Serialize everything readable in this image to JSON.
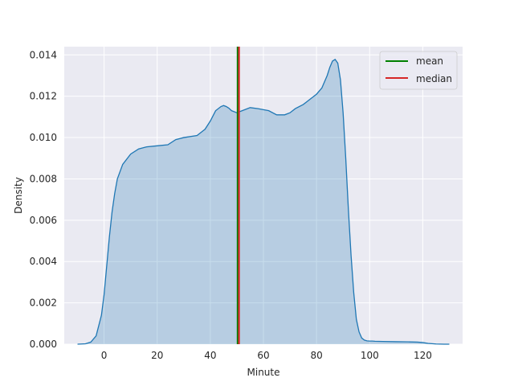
{
  "chart_data": {
    "type": "area",
    "title": "",
    "xlabel": "Minute",
    "ylabel": "Density",
    "xlim": [
      -15,
      135
    ],
    "ylim": [
      0,
      0.0144
    ],
    "xticks": [
      0,
      20,
      40,
      60,
      80,
      100,
      120
    ],
    "yticks": [
      0.0,
      0.002,
      0.004,
      0.006,
      0.008,
      0.01,
      0.012,
      0.014
    ],
    "ytick_labels": [
      "0.000",
      "0.002",
      "0.004",
      "0.006",
      "0.008",
      "0.010",
      "0.012",
      "0.014"
    ],
    "grid": true,
    "legend_position": "top-right",
    "colors": {
      "background": "#EAEAF2",
      "grid": "#FFFFFF",
      "curve": "#1F77B4",
      "fill": "#B6CDE3",
      "mean": "#008000",
      "median": "#D62728"
    },
    "series": [
      {
        "kind": "kde",
        "x": [
          -10,
          -7,
          -5,
          -3,
          -1,
          0,
          1,
          2,
          3,
          4,
          5,
          7,
          10,
          13,
          16,
          20,
          24,
          27,
          30,
          35,
          38,
          40,
          42,
          44,
          45,
          46,
          47,
          48,
          50,
          52,
          55,
          58,
          62,
          65,
          68,
          70,
          72,
          75,
          78,
          80,
          82,
          84,
          85,
          86,
          87,
          88,
          89,
          90,
          91,
          92,
          93,
          94,
          95,
          96,
          97,
          98,
          99,
          100,
          101,
          102,
          105,
          110,
          115,
          118,
          120,
          122,
          125,
          128,
          130
        ],
        "y": [
          0.0,
          2e-05,
          0.0001,
          0.0004,
          0.0014,
          0.0024,
          0.0038,
          0.0052,
          0.0064,
          0.0073,
          0.008,
          0.0087,
          0.0092,
          0.00945,
          0.00955,
          0.0096,
          0.00965,
          0.0099,
          0.01,
          0.0101,
          0.0104,
          0.0108,
          0.0113,
          0.0115,
          0.01155,
          0.0115,
          0.01142,
          0.0113,
          0.0112,
          0.0113,
          0.01145,
          0.0114,
          0.0113,
          0.0111,
          0.0111,
          0.0112,
          0.0114,
          0.0116,
          0.0119,
          0.0121,
          0.0124,
          0.013,
          0.0134,
          0.0137,
          0.01378,
          0.0136,
          0.0128,
          0.0112,
          0.009,
          0.0065,
          0.0043,
          0.0025,
          0.0012,
          0.0006,
          0.0003,
          0.0002,
          0.00016,
          0.00015,
          0.00015,
          0.00014,
          0.00013,
          0.00012,
          0.00011,
          0.0001,
          8e-05,
          4e-05,
          1e-05,
          0.0,
          0.0
        ]
      }
    ],
    "vlines": [
      {
        "name": "mean",
        "x": 50.3,
        "color": "#008000"
      },
      {
        "name": "median",
        "x": 50.8,
        "color": "#D62728"
      }
    ],
    "legend": [
      {
        "label": "mean",
        "color": "#008000"
      },
      {
        "label": "median",
        "color": "#D62728"
      }
    ]
  }
}
